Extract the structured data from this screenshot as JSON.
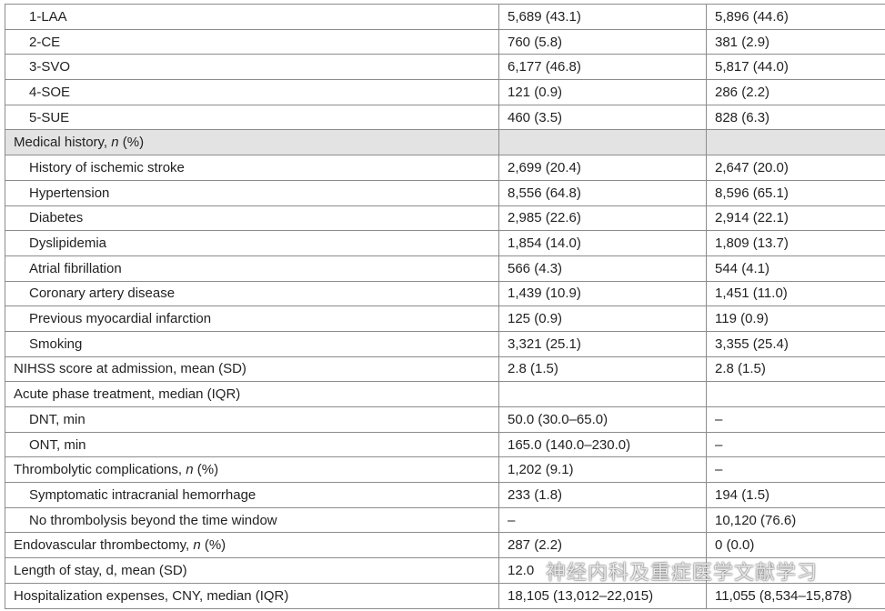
{
  "table": {
    "rows": [
      {
        "label": "1-LAA",
        "indent": true,
        "cells": [
          "5,689 (43.1)",
          "5,896 (44.6)"
        ]
      },
      {
        "label": "2-CE",
        "indent": true,
        "cells": [
          "760 (5.8)",
          "381 (2.9)"
        ]
      },
      {
        "label": "3-SVO",
        "indent": true,
        "cells": [
          "6,177 (46.8)",
          "5,817 (44.0)"
        ]
      },
      {
        "label": "4-SOE",
        "indent": true,
        "cells": [
          "121 (0.9)",
          "286 (2.2)"
        ]
      },
      {
        "label": "5-SUE",
        "indent": true,
        "cells": [
          "460 (3.5)",
          "828 (6.3)"
        ]
      },
      {
        "label": [
          "Medical history, ",
          "n",
          " (%)"
        ],
        "shaded": true
      },
      {
        "label": "History of ischemic stroke",
        "indent": true,
        "cells": [
          "2,699 (20.4)",
          "2,647 (20.0)"
        ]
      },
      {
        "label": "Hypertension",
        "indent": true,
        "cells": [
          "8,556 (64.8)",
          "8,596 (65.1)"
        ]
      },
      {
        "label": "Diabetes",
        "indent": true,
        "cells": [
          "2,985 (22.6)",
          "2,914 (22.1)"
        ]
      },
      {
        "label": "Dyslipidemia",
        "indent": true,
        "cells": [
          "1,854 (14.0)",
          "1,809 (13.7)"
        ]
      },
      {
        "label": "Atrial fibrillation",
        "indent": true,
        "cells": [
          "566 (4.3)",
          "544 (4.1)"
        ]
      },
      {
        "label": "Coronary artery disease",
        "indent": true,
        "cells": [
          "1,439 (10.9)",
          "1,451 (11.0)"
        ]
      },
      {
        "label": "Previous myocardial infarction",
        "indent": true,
        "cells": [
          "125 (0.9)",
          "119 (0.9)"
        ]
      },
      {
        "label": "Smoking",
        "indent": true,
        "cells": [
          "3,321 (25.1)",
          "3,355 (25.4)"
        ]
      },
      {
        "label": "NIHSS score at admission, mean (SD)",
        "cells": [
          "2.8 (1.5)",
          "2.8 (1.5)"
        ]
      },
      {
        "label": "Acute phase treatment, median (IQR)",
        "cells": []
      },
      {
        "label": "DNT, min",
        "indent": true,
        "cells": [
          "50.0 (30.0–65.0)",
          "–"
        ]
      },
      {
        "label": "ONT, min",
        "indent": true,
        "cells": [
          "165.0 (140.0–230.0)",
          "–"
        ]
      },
      {
        "label": [
          "Thrombolytic complications, ",
          "n",
          " (%)"
        ],
        "cells": [
          "1,202 (9.1)",
          "–"
        ]
      },
      {
        "label": "Symptomatic intracranial hemorrhage",
        "indent": true,
        "cells": [
          "233 (1.8)",
          "194 (1.5)"
        ]
      },
      {
        "label": "No thrombolysis beyond the time window",
        "indent": true,
        "cells": [
          "–",
          "10,120 (76.6)"
        ]
      },
      {
        "label": [
          "Endovascular thrombectomy, ",
          "n",
          " (%)"
        ],
        "cells": [
          "287 (2.2)",
          "0 (0.0)"
        ]
      },
      {
        "label": "Length of stay, d, mean (SD)",
        "cells": [
          "12.0"
        ]
      },
      {
        "label": "Hospitalization expenses, CNY, median (IQR)",
        "cells": [
          "18,105 (13,012–22,015)",
          "11,055 (8,534–15,878)"
        ]
      }
    ]
  },
  "watermark": "神经内科及重症医学文献学习"
}
